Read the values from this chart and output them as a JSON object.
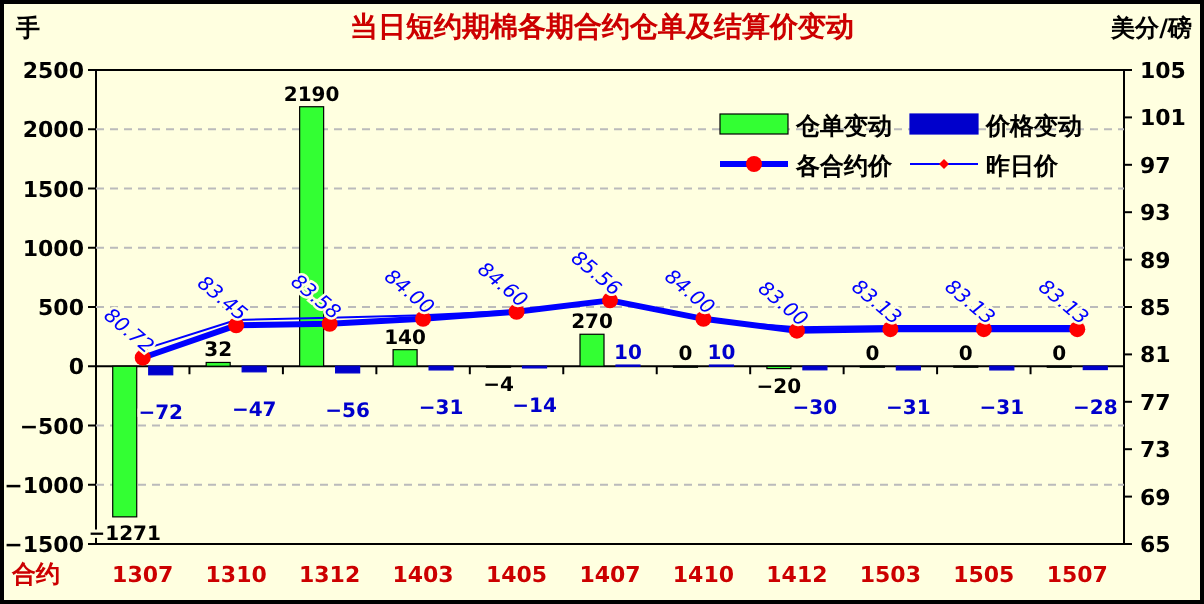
{
  "chart_data": {
    "type": "bar",
    "title": "当日短约期棉各期合约仓单及结算价变动",
    "xlabel": "合约",
    "ylabel": "手",
    "y2label": "美分/磅",
    "categories": [
      "1307",
      "1310",
      "1312",
      "1403",
      "1405",
      "1407",
      "1410",
      "1412",
      "1503",
      "1505",
      "1507"
    ],
    "series": [
      {
        "name": "仓单变动",
        "color": "#33ff33",
        "values": [
          -1271,
          32,
          2190,
          140,
          -4,
          270,
          0,
          -20,
          0,
          0,
          0
        ],
        "value_labels": [
          "−1271",
          "32",
          "2190",
          "140",
          "−4",
          "270",
          "0",
          "−20",
          "0",
          "0",
          "0"
        ]
      },
      {
        "name": "价格变动",
        "color": "#0000cc",
        "values": [
          -72,
          -47,
          -56,
          -31,
          -14,
          10,
          10,
          -30,
          -31,
          -31,
          -28
        ],
        "value_labels": [
          "−72",
          "−47",
          "−56",
          "−31",
          "−14",
          "10",
          "10",
          "−30",
          "−31",
          "−31",
          "−28"
        ]
      },
      {
        "name": "各合约价",
        "type": "line",
        "axis": "y2",
        "color": "#0000ff",
        "marker": "circle",
        "values": [
          80.72,
          83.45,
          83.58,
          84.0,
          84.6,
          85.56,
          84.0,
          83.0,
          83.13,
          83.13,
          83.13
        ],
        "value_labels": [
          "80.72",
          "83.45",
          "83.58",
          "84.00",
          "84.60",
          "85.56",
          "84.00",
          "83.00",
          "83.13",
          "83.13",
          "83.13"
        ]
      },
      {
        "name": "昨日价",
        "type": "line",
        "axis": "y2",
        "color": "#0000ff",
        "marker": "diamond",
        "values": [
          81.4,
          83.9,
          84.1,
          84.3,
          84.7,
          85.5,
          83.9,
          83.3,
          83.4,
          83.4,
          83.4
        ]
      }
    ],
    "ylim": [
      -1500,
      2500
    ],
    "yticks": [
      {
        "value": -1500,
        "label": "−1500"
      },
      {
        "value": -1000,
        "label": "−1000"
      },
      {
        "value": -500,
        "label": "−500"
      },
      0,
      500,
      1000,
      1500,
      2000,
      2500
    ],
    "y2lim": [
      65,
      105
    ],
    "y2ticks": [
      65,
      69,
      73,
      77,
      81,
      85,
      89,
      93,
      97,
      101,
      105
    ],
    "grid": "y",
    "legend": "top right"
  }
}
